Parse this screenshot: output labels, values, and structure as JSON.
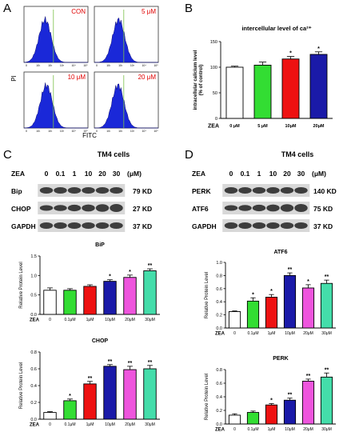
{
  "panel_letters": {
    "a": "A",
    "b": "B",
    "c": "C",
    "d": "D"
  },
  "flow": {
    "y_label": "PI",
    "x_label": "FITC",
    "tick_labels": [
      "0",
      "10¹",
      "10²",
      "10³",
      "10⁴",
      "10⁵"
    ],
    "panels": [
      {
        "label": "CON"
      },
      {
        "label": "5 μM"
      },
      {
        "label": "10 μM"
      },
      {
        "label": "20 μM"
      }
    ]
  },
  "colors": {
    "white": "#ffffff",
    "green": "#33dd33",
    "red": "#ee1111",
    "blue": "#1a1aa8",
    "pink": "#ee55dd",
    "teal": "#44ddaa",
    "flow_fill": "#1a28d8",
    "label_red": "#e00000"
  },
  "blots_c": {
    "title": "TM4 cells",
    "zea": "ZEA",
    "doses": [
      "0",
      "0.1",
      "1",
      "10",
      "20",
      "30"
    ],
    "unit": "(μM)",
    "rows": [
      {
        "name": "Bip",
        "kd": "79 KD"
      },
      {
        "name": "CHOP",
        "kd": "27 KD"
      },
      {
        "name": "GAPDH",
        "kd": "37 KD"
      }
    ]
  },
  "blots_d": {
    "title": "TM4 cells",
    "zea": "ZEA",
    "doses": [
      "0",
      "0.1",
      "1",
      "10",
      "20",
      "30"
    ],
    "unit": "(μM)",
    "rows": [
      {
        "name": "PERK",
        "kd": "140 KD"
      },
      {
        "name": "ATF6",
        "kd": "75 KD"
      },
      {
        "name": "GAPDH",
        "kd": "37 KD"
      }
    ]
  },
  "chart_data": [
    {
      "id": "ca",
      "type": "bar",
      "title": "intercellular level of ca²⁺",
      "ylabel": "intracellular calicium level\n(% of control)",
      "xprefix": "ZEA",
      "categories": [
        "0 μM",
        "5 μM",
        "10μM",
        "20μM"
      ],
      "values": [
        100,
        104,
        116,
        125
      ],
      "errors": [
        2,
        6,
        5,
        5
      ],
      "stars": [
        "",
        "",
        "*",
        "*"
      ],
      "colors": [
        "#ffffff",
        "#33dd33",
        "#ee1111",
        "#1a1aa8"
      ],
      "ylim": [
        0,
        150
      ],
      "yticks": [
        0,
        50,
        100,
        150
      ]
    },
    {
      "id": "bip",
      "type": "bar",
      "title": "BiP",
      "ylabel": "Relative Protein Level",
      "xprefix": "ZEA",
      "categories": [
        "0",
        "0.1μM",
        "1μM",
        "10μM",
        "20μM",
        "30μM"
      ],
      "values": [
        0.62,
        0.62,
        0.72,
        0.85,
        0.95,
        1.12
      ],
      "errors": [
        0.06,
        0.04,
        0.04,
        0.04,
        0.06,
        0.05
      ],
      "stars": [
        "",
        "",
        "",
        "*",
        "*",
        "**"
      ],
      "colors": [
        "#ffffff",
        "#33dd33",
        "#ee1111",
        "#1a1aa8",
        "#ee55dd",
        "#44ddaa"
      ],
      "ylim": [
        0,
        1.5
      ],
      "yticks": [
        0.0,
        0.5,
        1.0,
        1.5
      ]
    },
    {
      "id": "chop",
      "type": "bar",
      "title": "CHOP",
      "ylabel": "Relative Protein Level",
      "xprefix": "ZEA",
      "categories": [
        "0",
        "0.1μM",
        "1μM",
        "10μM",
        "20μM",
        "30μM"
      ],
      "values": [
        0.08,
        0.22,
        0.42,
        0.63,
        0.59,
        0.6
      ],
      "errors": [
        0.01,
        0.02,
        0.03,
        0.02,
        0.04,
        0.04
      ],
      "stars": [
        "",
        "*",
        "**",
        "**",
        "**",
        "**"
      ],
      "colors": [
        "#ffffff",
        "#33dd33",
        "#ee1111",
        "#1a1aa8",
        "#ee55dd",
        "#44ddaa"
      ],
      "ylim": [
        0,
        0.8
      ],
      "yticks": [
        0.0,
        0.2,
        0.4,
        0.6,
        0.8
      ]
    },
    {
      "id": "atf6",
      "type": "bar",
      "title": "ATF6",
      "ylabel": "Relative Protein Level",
      "xprefix": "ZEA",
      "categories": [
        "0",
        "0.1μM",
        "1μM",
        "10μM",
        "20μM",
        "30μM"
      ],
      "values": [
        0.25,
        0.41,
        0.47,
        0.8,
        0.61,
        0.68
      ],
      "errors": [
        0.01,
        0.05,
        0.04,
        0.04,
        0.05,
        0.05
      ],
      "stars": [
        "",
        "*",
        "*",
        "**",
        "*",
        "**"
      ],
      "colors": [
        "#ffffff",
        "#33dd33",
        "#ee1111",
        "#1a1aa8",
        "#ee55dd",
        "#44ddaa"
      ],
      "ylim": [
        0,
        1.0
      ],
      "yticks": [
        0.0,
        0.2,
        0.4,
        0.6,
        0.8,
        1.0
      ]
    },
    {
      "id": "perk",
      "type": "bar",
      "title": "PERK",
      "ylabel": "Relative Protein Level",
      "xprefix": "ZEA",
      "categories": [
        "0",
        "0.1μM",
        "1μM",
        "10μM",
        "20μM",
        "30μM"
      ],
      "values": [
        0.13,
        0.17,
        0.28,
        0.35,
        0.63,
        0.69
      ],
      "errors": [
        0.02,
        0.02,
        0.02,
        0.03,
        0.03,
        0.06
      ],
      "stars": [
        "",
        "",
        "*",
        "**",
        "**",
        "**"
      ],
      "colors": [
        "#ffffff",
        "#33dd33",
        "#ee1111",
        "#1a1aa8",
        "#ee55dd",
        "#44ddaa"
      ],
      "ylim": [
        0,
        0.8
      ],
      "yticks": [
        0.0,
        0.2,
        0.4,
        0.6,
        0.8
      ]
    }
  ]
}
